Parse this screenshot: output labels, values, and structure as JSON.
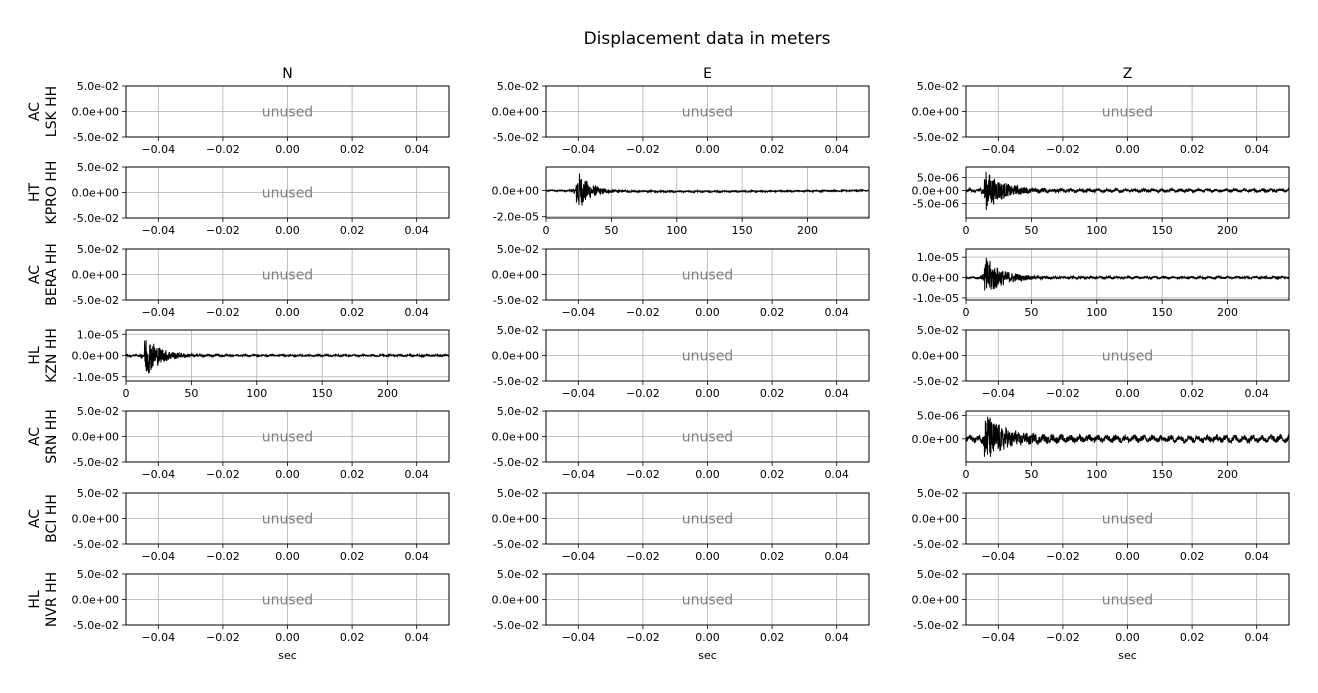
{
  "chart_data": {
    "type": "line",
    "title": "Displacement data in meters",
    "columns": [
      "N",
      "E",
      "Z"
    ],
    "xlabel": "sec",
    "rows": [
      {
        "station": "AC\nLSK HH"
      },
      {
        "station": "HT\nKPRO HH"
      },
      {
        "station": "AC\nBERA HH"
      },
      {
        "station": "HL\nKZN HH"
      },
      {
        "station": "AC\nSRN HH"
      },
      {
        "station": "AC\nBCI HH"
      },
      {
        "station": "HL\nNVR HH"
      }
    ],
    "unused_panel": {
      "label": "unused",
      "xlim": [
        -0.05,
        0.05
      ],
      "xticks": [
        -0.04,
        -0.02,
        0.0,
        0.02,
        0.04
      ],
      "xtick_labels": [
        "−0.04",
        "−0.02",
        "0.00",
        "0.02",
        "0.04"
      ],
      "ylim": [
        -0.05,
        0.05
      ],
      "yticks": [
        0.05,
        0.0,
        -0.05
      ],
      "ytick_labels": [
        "5.0e-02",
        "0.0e+00",
        "-5.0e-02"
      ]
    },
    "traces": [
      {
        "row": 1,
        "col": 1,
        "ylim": [
          -2.1e-05,
          1.8e-05
        ],
        "yticks": [
          0.0,
          -2e-05
        ],
        "ytick_labels": [
          "0.0e+00",
          "-2.0e-05"
        ],
        "xlim": [
          0,
          247
        ],
        "xticks": [
          0,
          50,
          100,
          150,
          200
        ],
        "xtick_labels": [
          "0",
          "50",
          "100",
          "150",
          "200"
        ],
        "onset": 23,
        "peak": 1.8e-05,
        "decay": 9,
        "noise": 4e-07,
        "trend": [
          [
            0,
            0
          ],
          [
            30,
            -3e-07
          ],
          [
            100,
            -8e-07
          ],
          [
            170,
            -6e-07
          ],
          [
            247,
            0
          ]
        ]
      },
      {
        "row": 1,
        "col": 2,
        "ylim": [
          -1.05e-05,
          9e-06
        ],
        "yticks": [
          5e-06,
          0.0,
          -5e-06
        ],
        "ytick_labels": [
          "5.0e-06",
          "0.0e+00",
          "-5.0e-06"
        ],
        "xlim": [
          0,
          247
        ],
        "xticks": [
          0,
          50,
          100,
          150,
          200
        ],
        "xtick_labels": [
          "0",
          "50",
          "100",
          "150",
          "200"
        ],
        "onset": 14,
        "peak": 8e-06,
        "decay": 13,
        "noise": 5e-07,
        "trend": [
          [
            0,
            0
          ],
          [
            247,
            0
          ]
        ]
      },
      {
        "row": 2,
        "col": 2,
        "ylim": [
          -1.1e-05,
          1.4e-05
        ],
        "yticks": [
          1e-05,
          0.0,
          -1e-05
        ],
        "ytick_labels": [
          "1.0e-05",
          "0.0e+00",
          "-1.0e-05"
        ],
        "xlim": [
          0,
          247
        ],
        "xticks": [
          0,
          50,
          100,
          150,
          200
        ],
        "xtick_labels": [
          "0",
          "50",
          "100",
          "150",
          "200"
        ],
        "onset": 14,
        "peak": 1.1e-05,
        "decay": 12,
        "noise": 4e-07,
        "trend": [
          [
            0,
            0
          ],
          [
            247,
            0
          ]
        ]
      },
      {
        "row": 3,
        "col": 0,
        "ylim": [
          -1.2e-05,
          1.2e-05
        ],
        "yticks": [
          1e-05,
          0.0,
          -1e-05
        ],
        "ytick_labels": [
          "1.0e-05",
          "0.0e+00",
          "-1.0e-05"
        ],
        "xlim": [
          0,
          247
        ],
        "xticks": [
          0,
          50,
          100,
          150,
          200
        ],
        "xtick_labels": [
          "0",
          "50",
          "100",
          "150",
          "200"
        ],
        "onset": 14,
        "peak": 1.1e-05,
        "decay": 11,
        "noise": 3e-07,
        "trend": [
          [
            0,
            0
          ],
          [
            247,
            0
          ]
        ]
      },
      {
        "row": 4,
        "col": 2,
        "ylim": [
          -5e-06,
          6e-06
        ],
        "yticks": [
          5e-06,
          0.0
        ],
        "ytick_labels": [
          "5.0e-06",
          "0.0e+00"
        ],
        "xlim": [
          0,
          247
        ],
        "xticks": [
          0,
          50,
          100,
          150,
          200
        ],
        "xtick_labels": [
          "0",
          "50",
          "100",
          "150",
          "200"
        ],
        "onset": 14,
        "peak": 5.5e-06,
        "decay": 14,
        "noise": 6e-07,
        "trend": [
          [
            0,
            0
          ],
          [
            247,
            0
          ]
        ]
      }
    ],
    "grid": true
  }
}
